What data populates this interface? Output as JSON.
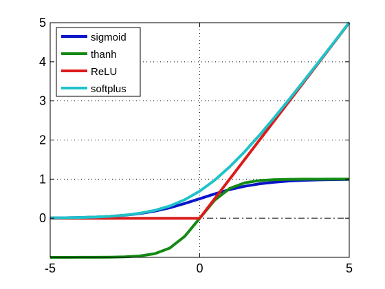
{
  "chart_data": {
    "type": "line",
    "title": "",
    "xlabel": "",
    "ylabel": "",
    "xlim": [
      -5,
      5
    ],
    "ylim": [
      -1,
      5
    ],
    "x_ticks": [
      -5,
      0,
      5
    ],
    "y_ticks": [
      0,
      1,
      2,
      3,
      4,
      5
    ],
    "x_tick_labels": [
      "-5",
      "0",
      "5"
    ],
    "y_tick_labels": [
      "0",
      "1",
      "2",
      "3",
      "4",
      "5"
    ],
    "grid": "dotted at x = 0 and y = 1, 2, 3, 4",
    "reference_line": {
      "y": 0,
      "style": "dash-dot"
    },
    "legend_position": "top-left",
    "series": [
      {
        "name": "sigmoid",
        "color": "#0a14c8",
        "x": [
          -5,
          -4.5,
          -4,
          -3.5,
          -3,
          -2.5,
          -2,
          -1.5,
          -1,
          -0.5,
          0,
          0.5,
          1,
          1.5,
          2,
          2.5,
          3,
          3.5,
          4,
          4.5,
          5
        ],
        "y": [
          0.007,
          0.011,
          0.018,
          0.029,
          0.047,
          0.076,
          0.119,
          0.182,
          0.269,
          0.378,
          0.5,
          0.622,
          0.731,
          0.818,
          0.881,
          0.924,
          0.953,
          0.971,
          0.982,
          0.989,
          0.993
        ]
      },
      {
        "name": "thanh",
        "color": "#138a13",
        "x": [
          -5,
          -4.5,
          -4,
          -3.5,
          -3,
          -2.5,
          -2,
          -1.5,
          -1,
          -0.5,
          0,
          0.5,
          1,
          1.5,
          2,
          2.5,
          3,
          3.5,
          4,
          4.5,
          5
        ],
        "y": [
          -1.0,
          -1.0,
          -0.999,
          -0.998,
          -0.995,
          -0.987,
          -0.964,
          -0.905,
          -0.762,
          -0.462,
          0,
          0.462,
          0.762,
          0.905,
          0.964,
          0.987,
          0.995,
          0.998,
          0.999,
          1.0,
          1.0
        ]
      },
      {
        "name": "ReLU",
        "color": "#dd1a1a",
        "x": [
          -5,
          0,
          5
        ],
        "y": [
          0,
          0,
          5
        ]
      },
      {
        "name": "softplus",
        "color": "#1fc2c8",
        "x": [
          -5,
          -4.5,
          -4,
          -3.5,
          -3,
          -2.5,
          -2,
          -1.5,
          -1,
          -0.5,
          0,
          0.5,
          1,
          1.5,
          2,
          2.5,
          3,
          3.5,
          4,
          4.5,
          5
        ],
        "y": [
          0.007,
          0.011,
          0.018,
          0.03,
          0.049,
          0.079,
          0.127,
          0.201,
          0.313,
          0.474,
          0.693,
          0.974,
          1.313,
          1.701,
          2.127,
          2.579,
          3.049,
          3.53,
          4.018,
          4.511,
          5.007
        ]
      }
    ]
  }
}
